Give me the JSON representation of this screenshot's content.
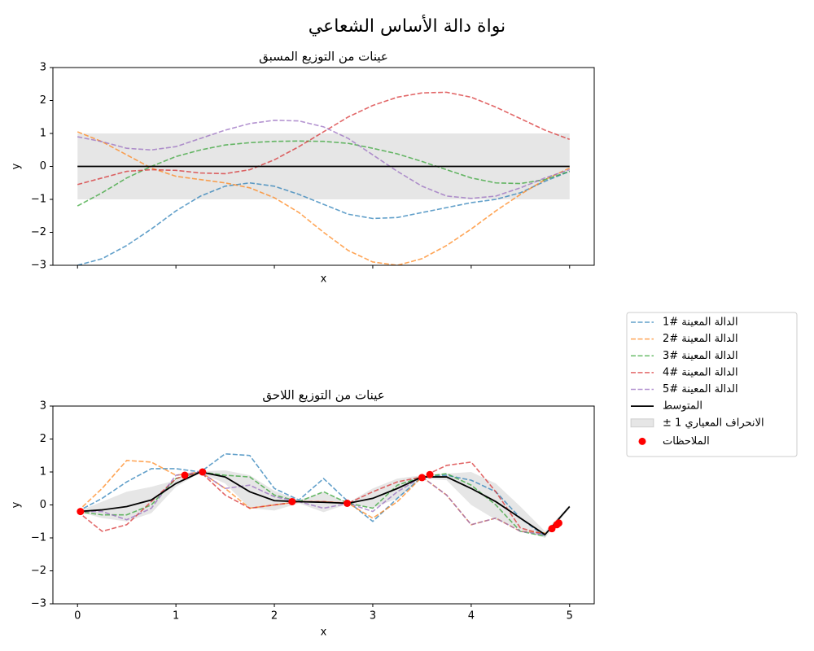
{
  "title": "نواة دالة الأساس الشعاعي",
  "legend": "outside right",
  "chart_data": [
    {
      "type": "line",
      "title": "عينات من التوزيع المسبق",
      "xlabel": "x",
      "ylabel": "y",
      "xlim": [
        -0.25,
        5.25
      ],
      "ylim": [
        -3,
        3
      ],
      "show_xtick_labels": false,
      "xticks": [
        0,
        1,
        2,
        3,
        4,
        5
      ],
      "yticks": [
        {
          "value": -3,
          "label": "−3"
        },
        {
          "value": -2,
          "label": "−2"
        },
        {
          "value": -1,
          "label": "−1"
        },
        0,
        1,
        2,
        3
      ],
      "x": [
        0,
        0.25,
        0.5,
        0.75,
        1,
        1.25,
        1.5,
        1.75,
        2,
        2.25,
        2.5,
        2.75,
        3,
        3.25,
        3.5,
        3.75,
        4,
        4.25,
        4.5,
        4.75,
        5
      ],
      "series": [
        {
          "color": "#1f77b4",
          "values": [
            -3.0,
            -2.8,
            -2.4,
            -1.9,
            -1.35,
            -0.9,
            -0.6,
            -0.5,
            -0.6,
            -0.85,
            -1.15,
            -1.45,
            -1.58,
            -1.55,
            -1.4,
            -1.25,
            -1.1,
            -1.0,
            -0.8,
            -0.45,
            -0.15
          ]
        },
        {
          "color": "#ff7f0e",
          "values": [
            1.05,
            0.75,
            0.35,
            -0.05,
            -0.3,
            -0.4,
            -0.5,
            -0.65,
            -0.95,
            -1.4,
            -2.0,
            -2.55,
            -2.9,
            -3.0,
            -2.8,
            -2.4,
            -1.9,
            -1.35,
            -0.85,
            -0.4,
            -0.05
          ]
        },
        {
          "color": "#2ca02c",
          "values": [
            -1.2,
            -0.8,
            -0.35,
            0.0,
            0.3,
            0.5,
            0.65,
            0.72,
            0.76,
            0.77,
            0.76,
            0.7,
            0.55,
            0.38,
            0.15,
            -0.1,
            -0.35,
            -0.5,
            -0.52,
            -0.4,
            -0.15
          ]
        },
        {
          "color": "#d62728",
          "values": [
            -0.55,
            -0.35,
            -0.15,
            -0.1,
            -0.12,
            -0.2,
            -0.22,
            -0.1,
            0.2,
            0.6,
            1.05,
            1.5,
            1.85,
            2.1,
            2.23,
            2.25,
            2.1,
            1.8,
            1.45,
            1.1,
            0.82
          ]
        },
        {
          "color": "#9467bd",
          "values": [
            0.9,
            0.75,
            0.55,
            0.5,
            0.6,
            0.85,
            1.1,
            1.3,
            1.4,
            1.38,
            1.2,
            0.85,
            0.35,
            -0.15,
            -0.6,
            -0.9,
            -0.97,
            -0.9,
            -0.65,
            -0.35,
            -0.1
          ]
        }
      ],
      "mean": {
        "color": "#000000",
        "values": [
          0,
          0,
          0,
          0,
          0,
          0,
          0,
          0,
          0,
          0,
          0,
          0,
          0,
          0,
          0,
          0,
          0,
          0,
          0,
          0,
          0
        ]
      },
      "band": {
        "color": "#808080",
        "lower": [
          -1,
          -1,
          -1,
          -1,
          -1,
          -1,
          -1,
          -1,
          -1,
          -1,
          -1,
          -1,
          -1,
          -1,
          -1,
          -1,
          -1,
          -1,
          -1,
          -1,
          -1
        ],
        "upper": [
          1,
          1,
          1,
          1,
          1,
          1,
          1,
          1,
          1,
          1,
          1,
          1,
          1,
          1,
          1,
          1,
          1,
          1,
          1,
          1,
          1
        ]
      }
    },
    {
      "type": "line",
      "title": "عينات من التوزيع اللاحق",
      "xlabel": "x",
      "ylabel": "y",
      "xlim": [
        -0.25,
        5.25
      ],
      "ylim": [
        -3,
        3
      ],
      "show_xtick_labels": true,
      "xticks": [
        0,
        1,
        2,
        3,
        4,
        5
      ],
      "yticks": [
        {
          "value": -3,
          "label": "−3"
        },
        {
          "value": -2,
          "label": "−2"
        },
        {
          "value": -1,
          "label": "−1"
        },
        0,
        1,
        2,
        3
      ],
      "x": [
        0,
        0.25,
        0.5,
        0.75,
        1,
        1.25,
        1.5,
        1.75,
        2,
        2.25,
        2.5,
        2.75,
        3,
        3.25,
        3.5,
        3.75,
        4,
        4.25,
        4.5,
        4.75,
        5
      ],
      "series": [
        {
          "name": "الدالة المعينة #1",
          "color": "#1f77b4",
          "values": [
            -0.2,
            0.2,
            0.7,
            1.1,
            1.1,
            1.0,
            1.55,
            1.5,
            0.5,
            0.15,
            0.8,
            0.1,
            -0.5,
            0.2,
            0.85,
            0.9,
            0.75,
            0.4,
            -0.4,
            -0.95,
            null
          ]
        },
        {
          "name": "الدالة المعينة #2",
          "color": "#ff7f0e",
          "values": [
            -0.2,
            0.5,
            1.35,
            1.3,
            0.9,
            1.0,
            0.5,
            -0.1,
            0.0,
            0.1,
            0.1,
            0.05,
            -0.4,
            0.1,
            0.85,
            0.3,
            -0.6,
            -0.4,
            -0.8,
            -0.85,
            null
          ]
        },
        {
          "name": "الدالة المعينة #3",
          "color": "#2ca02c",
          "values": [
            -0.2,
            -0.3,
            -0.3,
            0.0,
            0.8,
            1.0,
            0.9,
            0.85,
            0.3,
            0.1,
            0.4,
            0.05,
            -0.1,
            0.6,
            0.85,
            0.95,
            0.6,
            0.0,
            -0.8,
            -0.95,
            null
          ]
        },
        {
          "name": "الدالة المعينة #4",
          "color": "#d62728",
          "values": [
            -0.2,
            -0.8,
            -0.6,
            0.1,
            0.8,
            1.0,
            0.3,
            -0.1,
            0.0,
            0.1,
            0.1,
            0.05,
            0.4,
            0.7,
            0.85,
            1.2,
            1.3,
            0.4,
            -0.7,
            -0.9,
            null
          ]
        },
        {
          "name": "الدالة المعينة #5",
          "color": "#9467bd",
          "values": [
            -0.2,
            -0.2,
            -0.45,
            -0.1,
            0.9,
            1.0,
            0.5,
            0.6,
            0.25,
            0.1,
            -0.1,
            0.05,
            -0.2,
            0.4,
            0.85,
            0.3,
            -0.6,
            -0.4,
            -0.8,
            -0.9,
            null
          ]
        }
      ],
      "mean": {
        "name": "المتوسط",
        "color": "#000000",
        "values": [
          -0.2,
          -0.15,
          -0.05,
          0.15,
          0.65,
          1.0,
          0.85,
          0.4,
          0.13,
          0.1,
          0.08,
          0.05,
          0.2,
          0.5,
          0.85,
          0.85,
          0.5,
          0.1,
          -0.4,
          -0.9,
          -0.05
        ]
      },
      "band": {
        "name": "± 1 الانحراف المعياري",
        "color": "#808080",
        "lower": [
          -0.2,
          -0.4,
          -0.5,
          -0.25,
          0.55,
          0.98,
          0.65,
          -0.1,
          -0.17,
          0.05,
          -0.22,
          0.03,
          -0.1,
          0.2,
          0.8,
          0.75,
          0.0,
          -0.45,
          -0.75,
          -1.0,
          -0.1
        ],
        "upper": [
          -0.2,
          0.1,
          0.4,
          0.55,
          0.75,
          1.02,
          1.05,
          0.9,
          0.43,
          0.15,
          0.38,
          0.07,
          0.5,
          0.8,
          0.9,
          0.95,
          1.0,
          0.65,
          -0.05,
          -0.8,
          0.0
        ]
      },
      "observations": {
        "name": "الملاحظات",
        "color": "#ff0000",
        "x": [
          0.03,
          1.09,
          1.27,
          2.18,
          2.74,
          3.5,
          3.58,
          4.82,
          4.87,
          4.89
        ],
        "y": [
          -0.2,
          0.9,
          1.0,
          0.1,
          0.05,
          0.83,
          0.92,
          -0.72,
          -0.6,
          -0.55
        ]
      }
    }
  ]
}
